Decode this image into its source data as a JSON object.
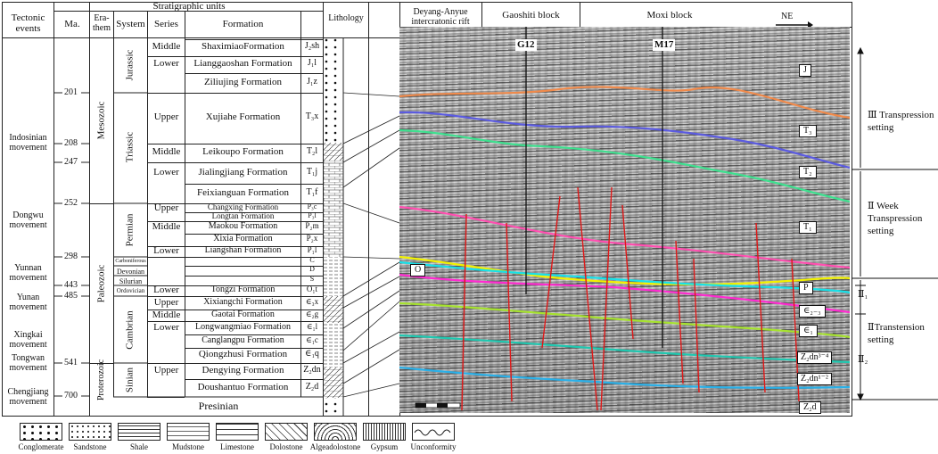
{
  "header": {
    "tectonic_events": "Tectonic\nevents",
    "strat_units": "Stratigraphic units",
    "ma": "Ma.",
    "erathem": "Era-\nthem",
    "system": "System",
    "series": "Series",
    "formation": "Formation",
    "lithology": "Lithology",
    "rift": "Deyang-Anyue\nintercratonic rift",
    "gaoshiti": "Gaoshiti block",
    "moxi": "Moxi block",
    "ne": "NE"
  },
  "tectonic_events": [
    "Indosinian\nmovement",
    "Dongwu\nmovement",
    "Yunnan\nmovement",
    "Yunan\nmovement",
    "Xingkai\nmovement",
    "Tongwan\nmovement",
    "Chengjiang\nmovement"
  ],
  "ages": [
    "201",
    "208",
    "247",
    "252",
    "298",
    "443",
    "485",
    "541",
    "700"
  ],
  "erathems": [
    "Mesozoic",
    "Paleozoic",
    "Proterozoic"
  ],
  "systems": [
    "Jurassic",
    "Triassic",
    "Permian",
    "Carboniferous",
    "Devonian",
    "Silurian",
    "Ordovician",
    "Cambrian",
    "Sinian"
  ],
  "formations": [
    {
      "series": "Middle",
      "name": "ShaximiaoFormation",
      "code": "J₂sh"
    },
    {
      "series": "Lower",
      "name": "Lianggaoshan Formation",
      "code": "J₁l"
    },
    {
      "series": "",
      "name": "Ziliujing Formation",
      "code": "J₁z"
    },
    {
      "series": "Upper",
      "name": "Xujiahe Formation",
      "code": "T₃x"
    },
    {
      "series": "Middle",
      "name": "Leikoupo Formation",
      "code": "T₂l"
    },
    {
      "series": "Lower",
      "name": "Jialingjiang Formation",
      "code": "T₁j"
    },
    {
      "series": "",
      "name": "Feixianguan Formation",
      "code": "T₁f"
    },
    {
      "series": "Upper",
      "name": "Changxing Formation",
      "code": "P₃c"
    },
    {
      "series": "",
      "name": "Longtan Formation",
      "code": "P₃l"
    },
    {
      "series": "Middle",
      "name": "Maokou Formation",
      "code": "P₂m"
    },
    {
      "series": "",
      "name": "Xixia Formation",
      "code": "P₂x"
    },
    {
      "series": "Lower",
      "name": "Liangshan Formation",
      "code": "P₁l"
    },
    {
      "series": "",
      "name": "",
      "code": "C"
    },
    {
      "series": "",
      "name": "",
      "code": "D"
    },
    {
      "series": "",
      "name": "",
      "code": "S"
    },
    {
      "series": "Lower",
      "name": "Tongzi Formation",
      "code": "O₁t"
    },
    {
      "series": "Upper",
      "name": "Xixiangchi Formation",
      "code": "∈₃x"
    },
    {
      "series": "Middle",
      "name": "Gaotai Formation",
      "code": "∈₂g"
    },
    {
      "series": "Lower",
      "name": "Longwangmiao Formation",
      "code": "∈₁l"
    },
    {
      "series": "",
      "name": "Canglangpu Formation",
      "code": "∈₁c"
    },
    {
      "series": "",
      "name": "Qiongzhusi Formation",
      "code": "∈₁q"
    },
    {
      "series": "Upper",
      "name": "Dengying Formation",
      "code": "Z₂dn"
    },
    {
      "series": "",
      "name": "Doushantuo Formation",
      "code": "Z₂d"
    }
  ],
  "presinian": "Presinian",
  "wells": [
    "G12",
    "M17"
  ],
  "horizon_labels": [
    "J",
    "T₃",
    "T₂",
    "T₁",
    "P",
    "∈₂₋₃",
    "∈₁",
    "Z₂dn³⁻⁴",
    "Z₂dn¹⁻²",
    "Z₂d",
    "O"
  ],
  "settings": [
    "Ⅲ Transpression\nsetting",
    "Ⅱ Week\nTranspression\nsetting",
    "Ⅱ₁",
    "ⅡTranstension\nsetting",
    "Ⅱ₂"
  ],
  "legend": [
    "Conglomerate",
    "Sandstone",
    "Shale",
    "Mudstone",
    "Limestone",
    "Dolostone",
    "Algeadolostone",
    "Gypsum",
    "Unconformity"
  ],
  "colors": {
    "orange": "#f08a4b",
    "blue": "#5b5be0",
    "green": "#3ee08f",
    "pink": "#ff4fb0",
    "yellow": "#f2f200",
    "cyan": "#18e0e8",
    "magenta": "#ff2bd0",
    "lime": "#a6e22e",
    "teal": "#1fc8b0",
    "skyblue": "#2ab0e8",
    "fault": "#e01818"
  }
}
